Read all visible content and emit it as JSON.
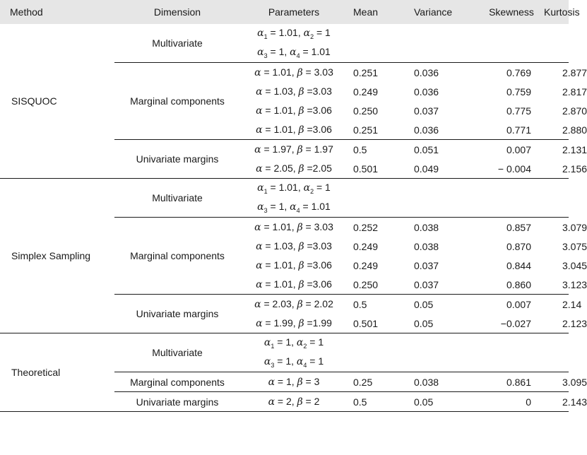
{
  "headers": [
    "Method",
    "Dimension",
    "Parameters",
    "Mean",
    "Variance",
    "Skewness",
    "Kurtosis"
  ],
  "groups": [
    {
      "method": "SISQUOC",
      "multivariate_label": "Multivariate",
      "multivariate_params": [
        "α1 = 1.01, α2 = 1",
        "α3 = 1, α4 = 1.01"
      ],
      "marginal_label": "Marginal components",
      "marginal_rows": [
        {
          "params": "α = 1.01, β = 3.03",
          "mean": "0.251",
          "variance": "0.036",
          "skewness": "0.769",
          "kurtosis": "2.877"
        },
        {
          "params": "α = 1.03, β =3.03",
          "mean": "0.249",
          "variance": "0.036",
          "skewness": "0.759",
          "kurtosis": "2.817"
        },
        {
          "params": "α = 1.01, β =3.06",
          "mean": "0.250",
          "variance": "0.037",
          "skewness": "0.775",
          "kurtosis": "2.870"
        },
        {
          "params": "α = 1.01, β =3.06",
          "mean": "0.251",
          "variance": "0.036",
          "skewness": "0.771",
          "kurtosis": "2.880"
        }
      ],
      "univariate_label": "Univariate margins",
      "univariate_rows": [
        {
          "params": "α = 1.97, β = 1.97",
          "mean": "0.5",
          "variance": "0.051",
          "skewness": "0.007",
          "kurtosis": "2.131"
        },
        {
          "params": "α = 2.05, β =2.05",
          "mean": "0.501",
          "variance": "0.049",
          "skewness": "− 0.004",
          "kurtosis": "2.156"
        }
      ]
    },
    {
      "method": "Simplex Sampling",
      "multivariate_label": "Multivariate",
      "multivariate_params": [
        "α1 = 1.01, α2 = 1",
        "α3 = 1, α4 = 1.01"
      ],
      "marginal_label": "Marginal components",
      "marginal_rows": [
        {
          "params": "α = 1.01, β = 3.03",
          "mean": "0.252",
          "variance": "0.038",
          "skewness": "0.857",
          "kurtosis": "3.079"
        },
        {
          "params": "α = 1.03, β =3.03",
          "mean": "0.249",
          "variance": "0.038",
          "skewness": "0.870",
          "kurtosis": "3.075"
        },
        {
          "params": "α = 1.01, β =3.06",
          "mean": "0.249",
          "variance": "0.037",
          "skewness": "0.844",
          "kurtosis": "3.045"
        },
        {
          "params": "α = 1.01, β =3.06",
          "mean": "0.250",
          "variance": "0.037",
          "skewness": "0.860",
          "kurtosis": "3.123"
        }
      ],
      "univariate_label": "Univariate margins",
      "univariate_rows": [
        {
          "params": "α = 2.03, β = 2.02",
          "mean": "0.5",
          "variance": "0.05",
          "skewness": "0.007",
          "kurtosis": "2.14"
        },
        {
          "params": "α = 1.99, β =1.99",
          "mean": "0.501",
          "variance": "0.05",
          "skewness": "−0.027",
          "kurtosis": "2.123"
        }
      ]
    },
    {
      "method": "Theoretical",
      "multivariate_label": "Multivariate",
      "multivariate_params": [
        "α1 = 1, α2 = 1",
        "α3 = 1, α4 = 1"
      ],
      "marginal_label": "Marginal components",
      "marginal_rows": [
        {
          "params": "α = 1, β = 3",
          "mean": "0.25",
          "variance": "0.038",
          "skewness": "0.861",
          "kurtosis": "3.095"
        }
      ],
      "univariate_label": "Univariate margins",
      "univariate_rows": [
        {
          "params": "α = 2, β = 2",
          "mean": "0.5",
          "variance": "0.05",
          "skewness": "0",
          "kurtosis": "2.143"
        }
      ]
    }
  ]
}
